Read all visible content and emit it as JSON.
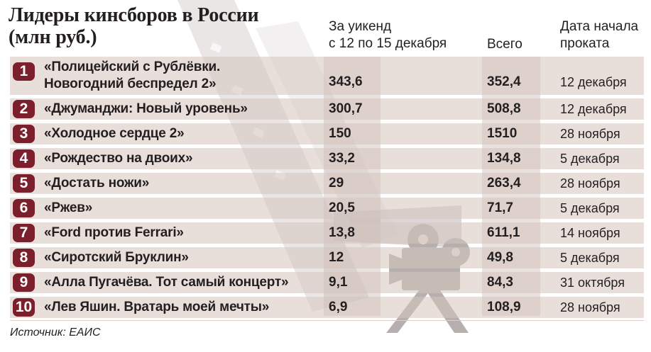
{
  "chart_data": {
    "type": "table",
    "title_lines": [
      "Лидеры кинсборов в России",
      "(млн руб.)"
    ],
    "columns": {
      "weekend": [
        "За уикенд",
        "с 12 по 15 декабря"
      ],
      "total": "Всего",
      "release": [
        "Дата начала",
        "проката"
      ]
    },
    "rows": [
      {
        "rank": "1",
        "title_lines": [
          "«Полицейский с Рублёвки.",
          "Новогодний беспредел 2»"
        ],
        "weekend": "343,6",
        "total": "352,4",
        "release": "12 декабря"
      },
      {
        "rank": "2",
        "title_lines": [
          "«Джуманджи: Новый уровень»"
        ],
        "weekend": "300,7",
        "total": "508,8",
        "release": "12 декабря"
      },
      {
        "rank": "3",
        "title_lines": [
          "«Холодное сердце 2»"
        ],
        "weekend": "150",
        "total": "1510",
        "release": "28 ноября"
      },
      {
        "rank": "4",
        "title_lines": [
          "«Рождество на двоих»"
        ],
        "weekend": "33,2",
        "total": "134,8",
        "release": "5 декабря"
      },
      {
        "rank": "5",
        "title_lines": [
          "«Достать ножи»"
        ],
        "weekend": "29",
        "total": "263,4",
        "release": "28 ноября"
      },
      {
        "rank": "6",
        "title_lines": [
          "«Ржев»"
        ],
        "weekend": "20,5",
        "total": "71,7",
        "release": "5 декабря"
      },
      {
        "rank": "7",
        "title_lines": [
          "«Ford против Ferrari»"
        ],
        "weekend": "13,8",
        "total": "611,1",
        "release": "14 ноября"
      },
      {
        "rank": "8",
        "title_lines": [
          "«Сиротский Бруклин»"
        ],
        "weekend": "12",
        "total": "49,8",
        "release": "5 декабря"
      },
      {
        "rank": "9",
        "title_lines": [
          "«Алла Пугачёва. Тот самый концерт»"
        ],
        "weekend": "9,1",
        "total": "84,3",
        "release": "31 октября"
      },
      {
        "rank": "10",
        "title_lines": [
          "«Лев Яшин. Вратарь моей мечты»"
        ],
        "weekend": "6,9",
        "total": "108,9",
        "release": "28 ноября"
      }
    ],
    "source": "Источник: ЕАИС",
    "colors": {
      "badge": "#7a1f2b",
      "row_shade": "#e6dbd7"
    }
  }
}
